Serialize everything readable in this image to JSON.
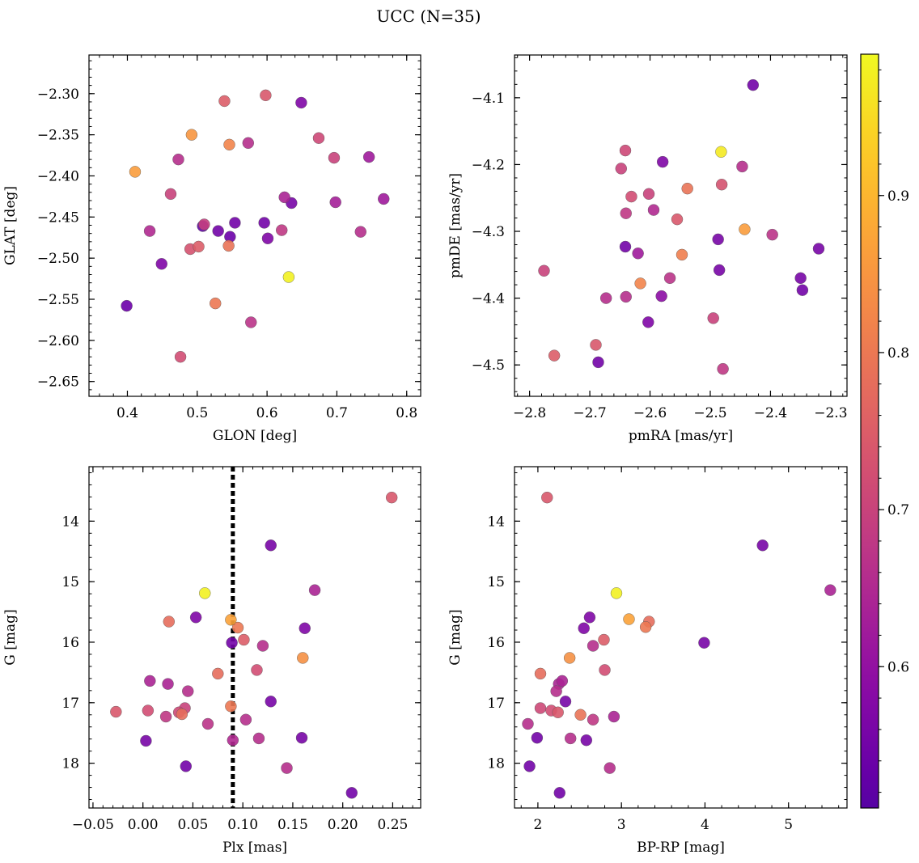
{
  "figure": {
    "title": "UCC (N=35)"
  },
  "colorbar": {
    "colormap": "plasma",
    "vmin": 0.51,
    "vmax": 0.99,
    "ticks": [
      0.6,
      0.7,
      0.8,
      0.9
    ],
    "tick_labels": [
      "0.6",
      "0.7",
      "0.8",
      "0.9"
    ]
  },
  "chart_data": [
    {
      "type": "scatter",
      "panel": "top-left",
      "xlabel": "GLON [deg]",
      "ylabel": "GLAT [deg]",
      "xlim": [
        0.345,
        0.82
      ],
      "ylim": [
        -2.668,
        -2.253
      ],
      "xticks": [
        0.4,
        0.5,
        0.6,
        0.7,
        0.8
      ],
      "xtick_labels": [
        "0.4",
        "0.5",
        "0.6",
        "0.7",
        "0.8"
      ],
      "yticks": [
        -2.3,
        -2.35,
        -2.4,
        -2.45,
        -2.5,
        -2.55,
        -2.6,
        -2.65
      ],
      "ytick_labels": [
        "−2.30",
        "−2.35",
        "−2.40",
        "−2.45",
        "−2.50",
        "−2.55",
        "−2.60",
        "−2.65"
      ],
      "points": [
        {
          "x": 0.399,
          "y": -2.558,
          "c": 0.54
        },
        {
          "x": 0.411,
          "y": -2.395,
          "c": 0.86
        },
        {
          "x": 0.432,
          "y": -2.467,
          "c": 0.65
        },
        {
          "x": 0.449,
          "y": -2.507,
          "c": 0.57
        },
        {
          "x": 0.462,
          "y": -2.422,
          "c": 0.7
        },
        {
          "x": 0.473,
          "y": -2.38,
          "c": 0.66
        },
        {
          "x": 0.476,
          "y": -2.62,
          "c": 0.72
        },
        {
          "x": 0.49,
          "y": -2.489,
          "c": 0.73
        },
        {
          "x": 0.492,
          "y": -2.35,
          "c": 0.85
        },
        {
          "x": 0.502,
          "y": -2.486,
          "c": 0.75
        },
        {
          "x": 0.508,
          "y": -2.461,
          "c": 0.53
        },
        {
          "x": 0.51,
          "y": -2.459,
          "c": 0.69
        },
        {
          "x": 0.526,
          "y": -2.555,
          "c": 0.8
        },
        {
          "x": 0.53,
          "y": -2.467,
          "c": 0.55
        },
        {
          "x": 0.539,
          "y": -2.309,
          "c": 0.75
        },
        {
          "x": 0.545,
          "y": -2.485,
          "c": 0.79
        },
        {
          "x": 0.546,
          "y": -2.362,
          "c": 0.82
        },
        {
          "x": 0.547,
          "y": -2.474,
          "c": 0.54
        },
        {
          "x": 0.554,
          "y": -2.457,
          "c": 0.55
        },
        {
          "x": 0.573,
          "y": -2.36,
          "c": 0.66
        },
        {
          "x": 0.577,
          "y": -2.578,
          "c": 0.67
        },
        {
          "x": 0.596,
          "y": -2.457,
          "c": 0.55
        },
        {
          "x": 0.598,
          "y": -2.302,
          "c": 0.74
        },
        {
          "x": 0.601,
          "y": -2.476,
          "c": 0.57
        },
        {
          "x": 0.621,
          "y": -2.466,
          "c": 0.68
        },
        {
          "x": 0.625,
          "y": -2.426,
          "c": 0.64
        },
        {
          "x": 0.631,
          "y": -2.523,
          "c": 0.98
        },
        {
          "x": 0.635,
          "y": -2.433,
          "c": 0.56
        },
        {
          "x": 0.649,
          "y": -2.311,
          "c": 0.57
        },
        {
          "x": 0.674,
          "y": -2.354,
          "c": 0.71
        },
        {
          "x": 0.696,
          "y": -2.378,
          "c": 0.7
        },
        {
          "x": 0.698,
          "y": -2.432,
          "c": 0.63
        },
        {
          "x": 0.734,
          "y": -2.468,
          "c": 0.66
        },
        {
          "x": 0.746,
          "y": -2.377,
          "c": 0.62
        },
        {
          "x": 0.767,
          "y": -2.428,
          "c": 0.62
        }
      ]
    },
    {
      "type": "scatter",
      "panel": "top-right",
      "xlabel": "pmRA [mas/yr]",
      "ylabel": "pmDE [mas/yr]",
      "xlim": [
        -2.825,
        -2.273
      ],
      "ylim": [
        -4.547,
        -4.036
      ],
      "xticks": [
        -2.8,
        -2.7,
        -2.6,
        -2.5,
        -2.4,
        -2.3
      ],
      "xtick_labels": [
        "−2.8",
        "−2.7",
        "−2.6",
        "−2.5",
        "−2.4",
        "−2.3"
      ],
      "yticks": [
        -4.1,
        -4.2,
        -4.3,
        -4.4,
        -4.5
      ],
      "ytick_labels": [
        "−4.1",
        "−4.2",
        "−4.3",
        "−4.4",
        "−4.5"
      ],
      "points": [
        {
          "x": -2.776,
          "y": -4.359,
          "c": 0.7
        },
        {
          "x": -2.759,
          "y": -4.486,
          "c": 0.75
        },
        {
          "x": -2.69,
          "y": -4.47,
          "c": 0.74
        },
        {
          "x": -2.686,
          "y": -4.496,
          "c": 0.55
        },
        {
          "x": -2.673,
          "y": -4.4,
          "c": 0.66
        },
        {
          "x": -2.648,
          "y": -4.206,
          "c": 0.7
        },
        {
          "x": -2.641,
          "y": -4.323,
          "c": 0.55
        },
        {
          "x": -2.641,
          "y": -4.179,
          "c": 0.71
        },
        {
          "x": -2.64,
          "y": -4.273,
          "c": 0.68
        },
        {
          "x": -2.64,
          "y": -4.398,
          "c": 0.66
        },
        {
          "x": -2.631,
          "y": -4.248,
          "c": 0.72
        },
        {
          "x": -2.62,
          "y": -4.333,
          "c": 0.62
        },
        {
          "x": -2.616,
          "y": -4.378,
          "c": 0.82
        },
        {
          "x": -2.602,
          "y": -4.244,
          "c": 0.7
        },
        {
          "x": -2.603,
          "y": -4.436,
          "c": 0.57
        },
        {
          "x": -2.594,
          "y": -4.268,
          "c": 0.65
        },
        {
          "x": -2.581,
          "y": -4.397,
          "c": 0.59
        },
        {
          "x": -2.579,
          "y": -4.196,
          "c": 0.57
        },
        {
          "x": -2.567,
          "y": -4.37,
          "c": 0.67
        },
        {
          "x": -2.555,
          "y": -4.282,
          "c": 0.74
        },
        {
          "x": -2.547,
          "y": -4.335,
          "c": 0.81
        },
        {
          "x": -2.538,
          "y": -4.236,
          "c": 0.79
        },
        {
          "x": -2.495,
          "y": -4.43,
          "c": 0.7
        },
        {
          "x": -2.487,
          "y": -4.312,
          "c": 0.56
        },
        {
          "x": -2.485,
          "y": -4.358,
          "c": 0.56
        },
        {
          "x": -2.482,
          "y": -4.181,
          "c": 0.97
        },
        {
          "x": -2.481,
          "y": -4.23,
          "c": 0.73
        },
        {
          "x": -2.479,
          "y": -4.506,
          "c": 0.68
        },
        {
          "x": -2.447,
          "y": -4.203,
          "c": 0.66
        },
        {
          "x": -2.443,
          "y": -4.297,
          "c": 0.86
        },
        {
          "x": -2.429,
          "y": -4.081,
          "c": 0.55
        },
        {
          "x": -2.397,
          "y": -4.305,
          "c": 0.67
        },
        {
          "x": -2.35,
          "y": -4.37,
          "c": 0.56
        },
        {
          "x": -2.347,
          "y": -4.388,
          "c": 0.55
        },
        {
          "x": -2.32,
          "y": -4.326,
          "c": 0.56
        }
      ]
    },
    {
      "type": "scatter",
      "panel": "bottom-left",
      "xlabel": "Plx [mas]",
      "ylabel": "G [mag]",
      "xlim": [
        -0.054,
        0.278
      ],
      "ylim": [
        18.74,
        13.1
      ],
      "xticks": [
        -0.05,
        0.0,
        0.05,
        0.1,
        0.15,
        0.2,
        0.25
      ],
      "xtick_labels": [
        "−0.05",
        "0.00",
        "0.05",
        "0.10",
        "0.15",
        "0.20",
        "0.25"
      ],
      "yticks": [
        14,
        15,
        16,
        17,
        18
      ],
      "ytick_labels": [
        "14",
        "15",
        "16",
        "17",
        "18"
      ],
      "vline": {
        "x": 0.09,
        "style": "dotted"
      },
      "points": [
        {
          "x": -0.027,
          "y": 17.15,
          "c": 0.74
        },
        {
          "x": 0.003,
          "y": 17.63,
          "c": 0.56
        },
        {
          "x": 0.005,
          "y": 17.13,
          "c": 0.72
        },
        {
          "x": 0.007,
          "y": 16.64,
          "c": 0.64
        },
        {
          "x": 0.023,
          "y": 17.23,
          "c": 0.68
        },
        {
          "x": 0.025,
          "y": 16.69,
          "c": 0.64
        },
        {
          "x": 0.026,
          "y": 15.66,
          "c": 0.78
        },
        {
          "x": 0.036,
          "y": 17.16,
          "c": 0.71
        },
        {
          "x": 0.039,
          "y": 17.19,
          "c": 0.78
        },
        {
          "x": 0.042,
          "y": 17.09,
          "c": 0.7
        },
        {
          "x": 0.043,
          "y": 18.05,
          "c": 0.55
        },
        {
          "x": 0.045,
          "y": 16.81,
          "c": 0.66
        },
        {
          "x": 0.053,
          "y": 15.59,
          "c": 0.57
        },
        {
          "x": 0.062,
          "y": 15.19,
          "c": 0.98
        },
        {
          "x": 0.065,
          "y": 17.35,
          "c": 0.67
        },
        {
          "x": 0.075,
          "y": 16.52,
          "c": 0.78
        },
        {
          "x": 0.088,
          "y": 15.63,
          "c": 0.87
        },
        {
          "x": 0.088,
          "y": 17.06,
          "c": 0.8
        },
        {
          "x": 0.089,
          "y": 16.01,
          "c": 0.55
        },
        {
          "x": 0.09,
          "y": 17.62,
          "c": 0.65
        },
        {
          "x": 0.095,
          "y": 15.76,
          "c": 0.8
        },
        {
          "x": 0.101,
          "y": 15.96,
          "c": 0.75
        },
        {
          "x": 0.103,
          "y": 17.28,
          "c": 0.66
        },
        {
          "x": 0.114,
          "y": 16.46,
          "c": 0.72
        },
        {
          "x": 0.116,
          "y": 17.59,
          "c": 0.66
        },
        {
          "x": 0.12,
          "y": 16.06,
          "c": 0.66
        },
        {
          "x": 0.128,
          "y": 14.4,
          "c": 0.56
        },
        {
          "x": 0.128,
          "y": 16.98,
          "c": 0.56
        },
        {
          "x": 0.144,
          "y": 18.08,
          "c": 0.66
        },
        {
          "x": 0.159,
          "y": 17.58,
          "c": 0.56
        },
        {
          "x": 0.16,
          "y": 16.26,
          "c": 0.84
        },
        {
          "x": 0.162,
          "y": 15.77,
          "c": 0.57
        },
        {
          "x": 0.172,
          "y": 15.14,
          "c": 0.64
        },
        {
          "x": 0.209,
          "y": 18.49,
          "c": 0.55
        },
        {
          "x": 0.249,
          "y": 13.61,
          "c": 0.74
        }
      ]
    },
    {
      "type": "scatter",
      "panel": "bottom-right",
      "xlabel": "BP-RP [mag]",
      "ylabel": "G [mag]",
      "xlim": [
        1.72,
        5.7
      ],
      "ylim": [
        18.74,
        13.1
      ],
      "xticks": [
        2,
        3,
        4,
        5
      ],
      "xtick_labels": [
        "2",
        "3",
        "4",
        "5"
      ],
      "yticks": [
        14,
        15,
        16,
        17,
        18
      ],
      "ytick_labels": [
        "14",
        "15",
        "16",
        "17",
        "18"
      ],
      "points": [
        {
          "x": 1.88,
          "y": 17.35,
          "c": 0.66
        },
        {
          "x": 1.9,
          "y": 18.05,
          "c": 0.55
        },
        {
          "x": 1.99,
          "y": 17.58,
          "c": 0.55
        },
        {
          "x": 2.03,
          "y": 16.52,
          "c": 0.78
        },
        {
          "x": 2.03,
          "y": 17.09,
          "c": 0.71
        },
        {
          "x": 2.11,
          "y": 13.61,
          "c": 0.74
        },
        {
          "x": 2.16,
          "y": 17.13,
          "c": 0.72
        },
        {
          "x": 2.22,
          "y": 16.81,
          "c": 0.66
        },
        {
          "x": 2.24,
          "y": 17.16,
          "c": 0.74
        },
        {
          "x": 2.25,
          "y": 16.69,
          "c": 0.64
        },
        {
          "x": 2.26,
          "y": 18.49,
          "c": 0.55
        },
        {
          "x": 2.29,
          "y": 16.64,
          "c": 0.64
        },
        {
          "x": 2.33,
          "y": 16.98,
          "c": 0.56
        },
        {
          "x": 2.38,
          "y": 16.26,
          "c": 0.84
        },
        {
          "x": 2.39,
          "y": 17.59,
          "c": 0.66
        },
        {
          "x": 2.51,
          "y": 17.2,
          "c": 0.79
        },
        {
          "x": 2.55,
          "y": 15.77,
          "c": 0.57
        },
        {
          "x": 2.58,
          "y": 17.62,
          "c": 0.56
        },
        {
          "x": 2.62,
          "y": 15.59,
          "c": 0.57
        },
        {
          "x": 2.66,
          "y": 17.28,
          "c": 0.68
        },
        {
          "x": 2.66,
          "y": 16.06,
          "c": 0.66
        },
        {
          "x": 2.79,
          "y": 15.96,
          "c": 0.75
        },
        {
          "x": 2.8,
          "y": 16.46,
          "c": 0.72
        },
        {
          "x": 2.86,
          "y": 18.08,
          "c": 0.66
        },
        {
          "x": 2.91,
          "y": 17.23,
          "c": 0.64
        },
        {
          "x": 2.94,
          "y": 15.19,
          "c": 0.98
        },
        {
          "x": 3.09,
          "y": 15.62,
          "c": 0.87
        },
        {
          "x": 3.29,
          "y": 15.75,
          "c": 0.8
        },
        {
          "x": 3.33,
          "y": 15.66,
          "c": 0.78
        },
        {
          "x": 3.99,
          "y": 16.01,
          "c": 0.56
        },
        {
          "x": 4.69,
          "y": 14.4,
          "c": 0.56
        },
        {
          "x": 5.5,
          "y": 15.14,
          "c": 0.64
        }
      ]
    }
  ]
}
